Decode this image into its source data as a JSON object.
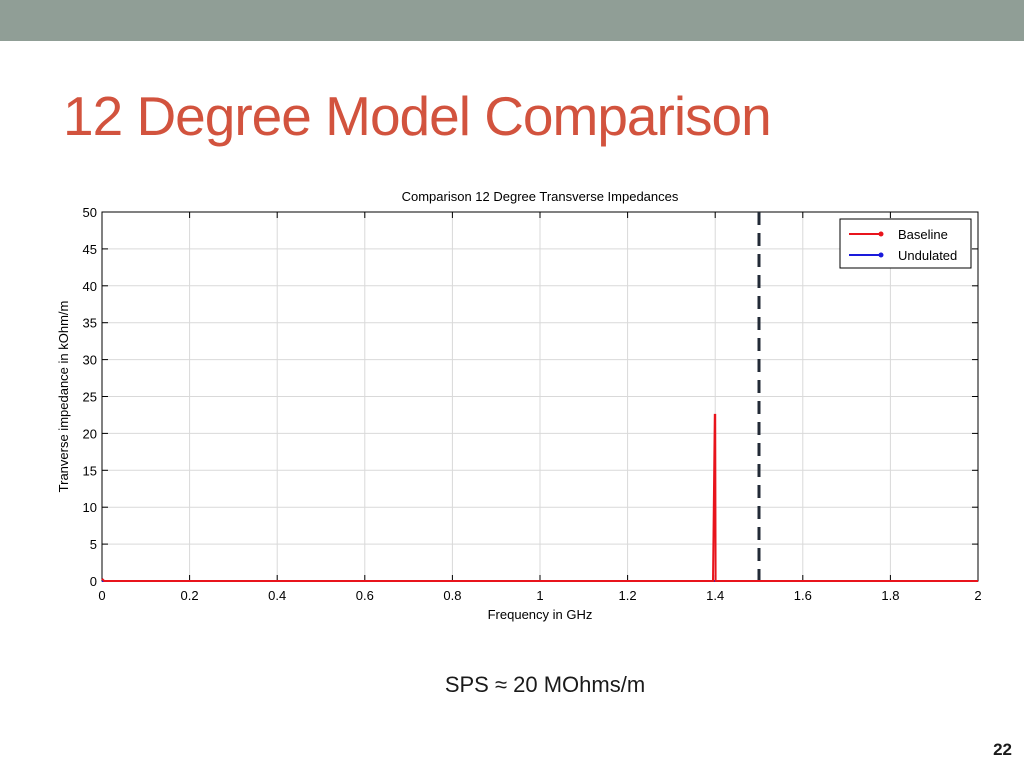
{
  "slide": {
    "title": "12 Degree Model Comparison",
    "subtitle": "SPS ≈ 20 MOhms/m",
    "page_number": "22",
    "top_bar_color": "#909e96",
    "title_color": "#d2533e"
  },
  "chart_data": {
    "type": "line",
    "title": "Comparison 12 Degree Transverse Impedances",
    "xlabel": "Frequency in GHz",
    "ylabel": "Tranverse impedance in kOhm/m",
    "xlim": [
      0,
      2
    ],
    "ylim": [
      0,
      50
    ],
    "x_ticks": [
      0,
      0.2,
      0.4,
      0.6,
      0.8,
      1,
      1.2,
      1.4,
      1.6,
      1.8,
      2
    ],
    "x_tick_labels": [
      "0",
      "0.2",
      "0.4",
      "0.6",
      "0.8",
      "1",
      "1.2",
      "1.4",
      "1.6",
      "1.8",
      "2"
    ],
    "y_ticks": [
      0,
      5,
      10,
      15,
      20,
      25,
      30,
      35,
      40,
      45,
      50
    ],
    "y_tick_labels": [
      "0",
      "5",
      "10",
      "15",
      "20",
      "25",
      "30",
      "35",
      "40",
      "45",
      "50"
    ],
    "grid": true,
    "legend_position": "top-right",
    "series": [
      {
        "name": "Baseline",
        "color": "#e8141c",
        "points": [
          [
            0,
            0.3
          ],
          [
            0.005,
            0
          ],
          [
            1.395,
            0
          ],
          [
            1.399,
            22.5
          ],
          [
            1.4,
            22.5
          ],
          [
            1.401,
            0
          ],
          [
            2,
            0
          ]
        ]
      },
      {
        "name": "Undulated",
        "color": "#1a1adb",
        "points": [
          [
            0,
            0
          ],
          [
            2,
            0
          ]
        ]
      }
    ],
    "annotations": [
      {
        "type": "vertical-dashed-line",
        "x": 1.5,
        "color": "#222a36"
      }
    ]
  }
}
